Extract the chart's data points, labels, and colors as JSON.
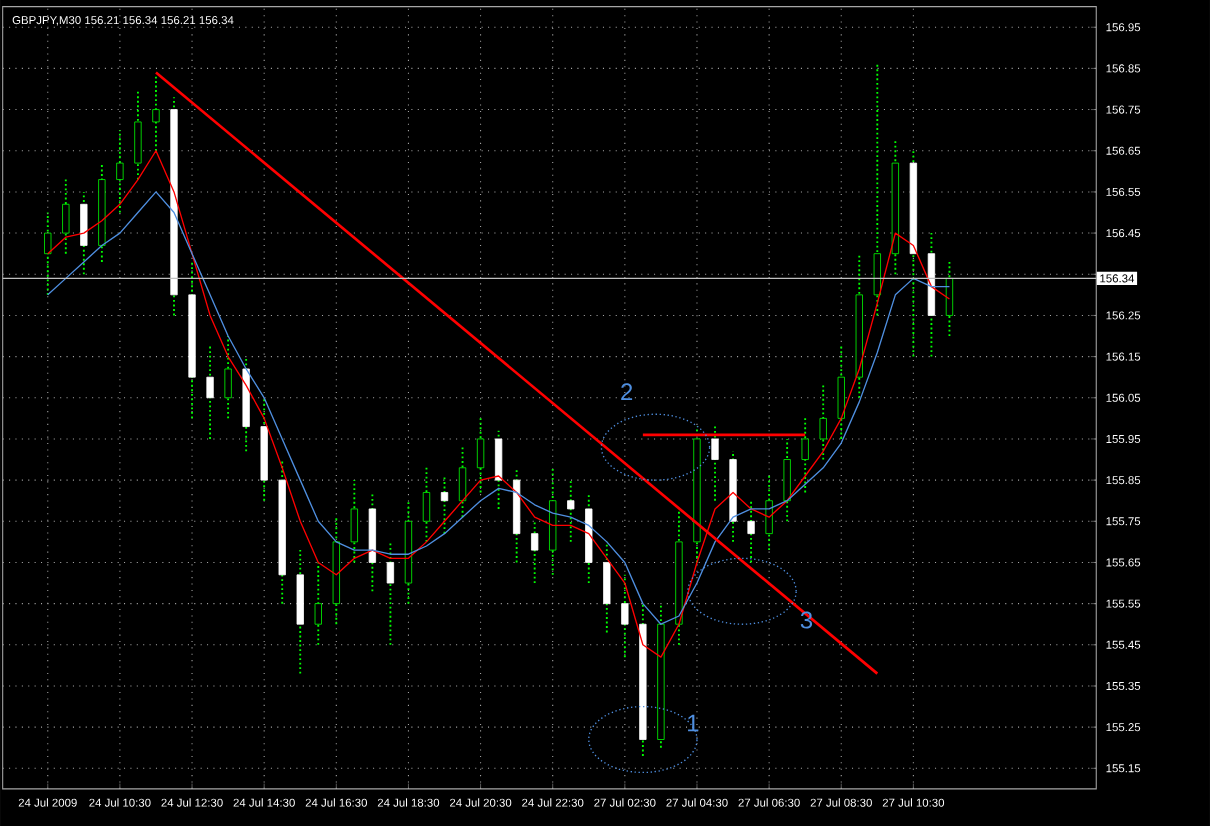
{
  "chart_data": {
    "type": "candlestick",
    "title": "GBPJPY,M30  156.21 156.34 156.21 156.34",
    "color": "#00ff00",
    "colors": [
      "#00ff00",
      "#00ff00",
      "#ffffff",
      "#00ff00",
      "#00ff00",
      "#00ff00",
      "#00ff00",
      "#ffffff",
      "#ffffff",
      "#ffffff",
      "#00ff00",
      "#ffffff",
      "#ffffff",
      "#ffffff",
      "#ffffff",
      "#00ff00",
      "#00ff00",
      "#00ff00",
      "#ffffff",
      "#ffffff",
      "#00ff00",
      "#00ff00",
      "#ffffff",
      "#00ff00",
      "#00ff00",
      "#ffffff",
      "#ffffff",
      "#ffffff",
      "#00ff00",
      "#ffffff",
      "#ffffff",
      "#ffffff",
      "#ffffff",
      "#ffffff",
      "#00ff00",
      "#00ff00",
      "#00ff00",
      "#ffffff",
      "#ffffff",
      "#ffffff",
      "#00ff00",
      "#00ff00",
      "#00ff00",
      "#00ff00",
      "#00ff00",
      "#00ff00",
      "#00ff00",
      "#00ff00",
      "#ffffff",
      "#ffffff",
      "#00ff00"
    ],
    "categories": [
      "24 Jul 2009",
      null,
      null,
      null,
      "24 Jul 10:30",
      null,
      null,
      null,
      "24 Jul 12:30",
      null,
      null,
      null,
      "24 Jul 14:30",
      null,
      null,
      null,
      "24 Jul 16:30",
      null,
      null,
      null,
      "24 Jul 18:30",
      null,
      null,
      null,
      "24 Jul 20:30",
      null,
      null,
      null,
      "24 Jul 22:30",
      null,
      null,
      null,
      "27 Jul 02:30",
      null,
      null,
      null,
      "27 Jul 04:30",
      null,
      null,
      null,
      "27 Jul 06:30",
      null,
      null,
      null,
      "27 Jul 08:30",
      null,
      null,
      null,
      "27 Jul 10:30",
      null,
      null
    ],
    "ohlc": [
      [
        156.4,
        156.5,
        156.3,
        156.45
      ],
      [
        156.45,
        156.58,
        156.4,
        156.52
      ],
      [
        156.52,
        156.55,
        156.35,
        156.42
      ],
      [
        156.42,
        156.62,
        156.38,
        156.58
      ],
      [
        156.58,
        156.7,
        156.5,
        156.62
      ],
      [
        156.62,
        156.8,
        156.58,
        156.72
      ],
      [
        156.72,
        156.83,
        156.65,
        156.75
      ],
      [
        156.75,
        156.78,
        156.25,
        156.3
      ],
      [
        156.3,
        156.38,
        156.0,
        156.1
      ],
      [
        156.1,
        156.18,
        155.95,
        156.05
      ],
      [
        156.05,
        156.2,
        156.0,
        156.12
      ],
      [
        156.12,
        156.15,
        155.92,
        155.98
      ],
      [
        155.98,
        156.05,
        155.8,
        155.85
      ],
      [
        155.85,
        155.9,
        155.55,
        155.62
      ],
      [
        155.62,
        155.68,
        155.38,
        155.5
      ],
      [
        155.5,
        155.65,
        155.45,
        155.55
      ],
      [
        155.55,
        155.76,
        155.5,
        155.7
      ],
      [
        155.7,
        155.85,
        155.65,
        155.78
      ],
      [
        155.78,
        155.82,
        155.58,
        155.65
      ],
      [
        155.65,
        155.7,
        155.45,
        155.6
      ],
      [
        155.6,
        155.8,
        155.55,
        155.75
      ],
      [
        155.75,
        155.88,
        155.7,
        155.82
      ],
      [
        155.82,
        155.86,
        155.72,
        155.8
      ],
      [
        155.8,
        155.93,
        155.76,
        155.88
      ],
      [
        155.88,
        156.0,
        155.82,
        155.95
      ],
      [
        155.95,
        155.97,
        155.78,
        155.85
      ],
      [
        155.85,
        155.88,
        155.65,
        155.72
      ],
      [
        155.72,
        155.75,
        155.6,
        155.68
      ],
      [
        155.68,
        155.88,
        155.62,
        155.8
      ],
      [
        155.8,
        155.85,
        155.7,
        155.78
      ],
      [
        155.78,
        155.82,
        155.6,
        155.65
      ],
      [
        155.65,
        155.7,
        155.48,
        155.55
      ],
      [
        155.55,
        155.62,
        155.42,
        155.5
      ],
      [
        155.5,
        155.55,
        155.18,
        155.22
      ],
      [
        155.22,
        155.55,
        155.2,
        155.5
      ],
      [
        155.5,
        155.78,
        155.45,
        155.7
      ],
      [
        155.7,
        155.98,
        155.65,
        155.95
      ],
      [
        155.95,
        155.98,
        155.8,
        155.9
      ],
      [
        155.9,
        155.92,
        155.7,
        155.75
      ],
      [
        155.75,
        155.8,
        155.65,
        155.72
      ],
      [
        155.72,
        155.86,
        155.68,
        155.8
      ],
      [
        155.8,
        155.95,
        155.75,
        155.9
      ],
      [
        155.9,
        156.0,
        155.82,
        155.95
      ],
      [
        155.95,
        156.08,
        155.9,
        156.0
      ],
      [
        156.0,
        156.18,
        155.95,
        156.1
      ],
      [
        156.1,
        156.4,
        156.05,
        156.3
      ],
      [
        156.3,
        156.86,
        156.25,
        156.4
      ],
      [
        156.4,
        156.68,
        156.35,
        156.62
      ],
      [
        156.62,
        156.65,
        156.15,
        156.4
      ],
      [
        156.4,
        156.45,
        156.15,
        156.25
      ],
      [
        156.25,
        156.38,
        156.2,
        156.34
      ]
    ],
    "series": [
      {
        "type": "line",
        "color": "#ff0000",
        "values": [
          156.4,
          156.44,
          156.45,
          156.48,
          156.52,
          156.58,
          156.65,
          156.55,
          156.4,
          156.25,
          156.15,
          156.08,
          156.0,
          155.88,
          155.75,
          155.65,
          155.62,
          155.66,
          155.68,
          155.66,
          155.66,
          155.7,
          155.75,
          155.8,
          155.85,
          155.86,
          155.82,
          155.76,
          155.74,
          155.74,
          155.72,
          155.66,
          155.6,
          155.45,
          155.42,
          155.5,
          155.65,
          155.78,
          155.82,
          155.78,
          155.76,
          155.8,
          155.86,
          155.92,
          156.0,
          156.12,
          156.28,
          156.45,
          156.42,
          156.32,
          156.29
        ]
      },
      {
        "type": "line",
        "color": "#4f8fe0",
        "values": [
          156.3,
          156.34,
          156.38,
          156.42,
          156.45,
          156.5,
          156.55,
          156.5,
          156.4,
          156.3,
          156.2,
          156.12,
          156.05,
          155.95,
          155.85,
          155.75,
          155.7,
          155.68,
          155.68,
          155.67,
          155.67,
          155.69,
          155.72,
          155.76,
          155.8,
          155.83,
          155.82,
          155.79,
          155.77,
          155.76,
          155.74,
          155.7,
          155.65,
          155.55,
          155.5,
          155.52,
          155.6,
          155.7,
          155.76,
          155.78,
          155.78,
          155.8,
          155.84,
          155.88,
          155.94,
          156.04,
          156.16,
          156.3,
          156.34,
          156.32,
          156.32
        ]
      },
      {
        "type": "line",
        "color": "#ff0000",
        "values": [
          null,
          null,
          null,
          null,
          null,
          null,
          156.84,
          null,
          null,
          null,
          null,
          null,
          null,
          null,
          null,
          null,
          null,
          null,
          null,
          null,
          null,
          null,
          null,
          null,
          null,
          null,
          null,
          null,
          null,
          null,
          null,
          null,
          null,
          null,
          null,
          null,
          null,
          null,
          null,
          null,
          null,
          null,
          null,
          null,
          null,
          null,
          155.38,
          null,
          null,
          null,
          null
        ]
      },
      {
        "type": "line",
        "color": "#ff0000",
        "values": [
          null,
          null,
          null,
          null,
          null,
          null,
          null,
          null,
          null,
          null,
          null,
          null,
          null,
          null,
          null,
          null,
          null,
          null,
          null,
          null,
          null,
          null,
          null,
          null,
          null,
          null,
          null,
          null,
          null,
          null,
          null,
          null,
          null,
          155.96,
          null,
          null,
          null,
          null,
          null,
          null,
          null,
          null,
          155.96,
          null,
          null,
          null,
          null,
          null,
          null,
          null,
          null
        ]
      }
    ],
    "ylim": [
      155.1,
      157.0
    ],
    "yticks": [
      155.15,
      155.25,
      155.35,
      155.45,
      155.55,
      155.65,
      155.75,
      155.85,
      155.95,
      156.05,
      156.15,
      156.25,
      {
        "value": 156.35,
        "label": null
      },
      156.45,
      156.55,
      156.65,
      156.75,
      156.85,
      156.95
    ],
    "ref_lines": [
      {
        "axis": "y",
        "value": 156.34,
        "label": "156.34",
        "color": "#c0c0c0"
      }
    ],
    "annotations": [
      "1",
      "2",
      "3"
    ],
    "grid": true
  }
}
